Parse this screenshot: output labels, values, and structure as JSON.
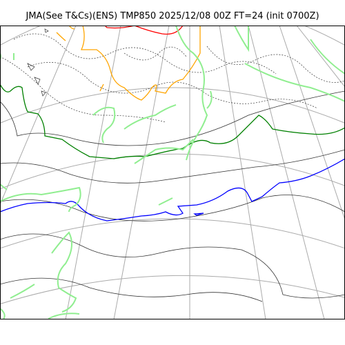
{
  "title": "JMA(See T&Cs)(ENS) TMP850 2025/12/08 00Z FT=24 (init 0700Z)",
  "colors": {
    "coastline": "#90ee90",
    "graticule": "#aaaaaa",
    "contour": "#333333",
    "isotherm_0": "#0000ff",
    "isotherm_minus6": "#008000",
    "isotherm_minus24": "#ffa500",
    "isotherm_minus30": "#ff0000"
  }
}
